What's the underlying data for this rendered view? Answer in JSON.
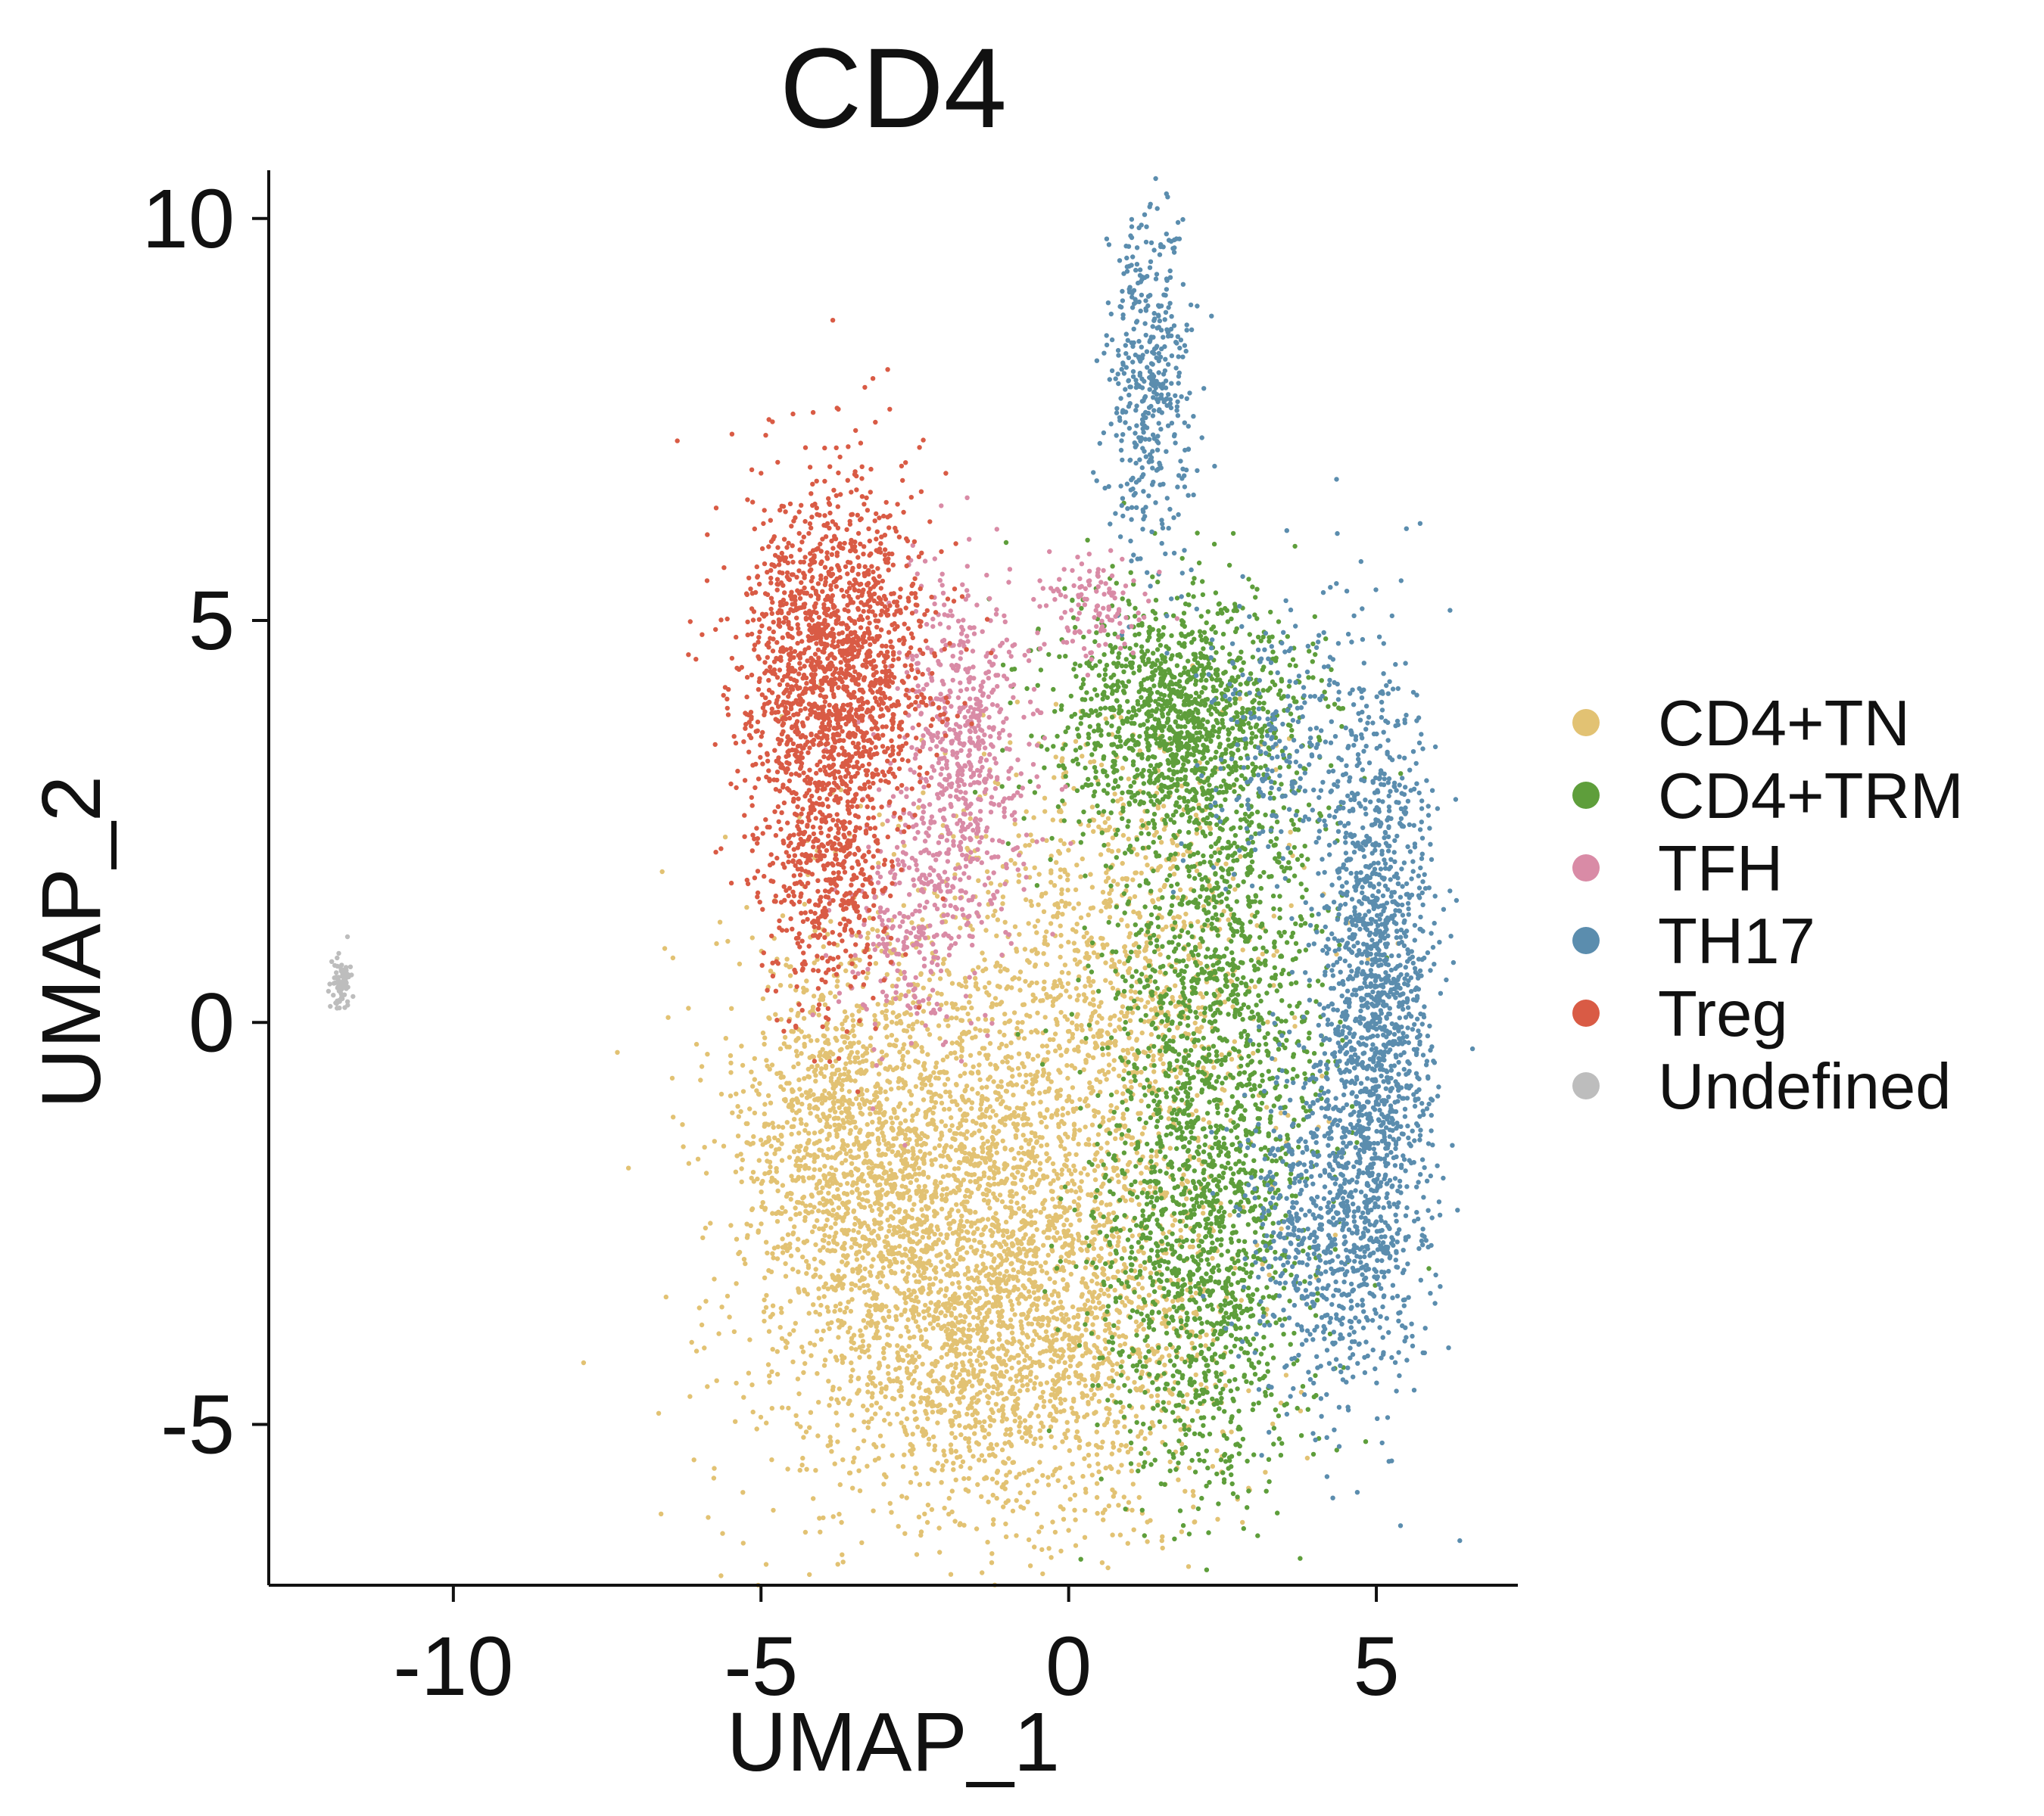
{
  "chart_data": {
    "type": "scatter",
    "title": "CD4",
    "xlabel": "UMAP_1",
    "ylabel": "UMAP_2",
    "xlim": [
      -13,
      7.3
    ],
    "ylim": [
      -7.0,
      10.6
    ],
    "xticks": [
      {
        "value": -10,
        "label": "-10"
      },
      {
        "value": -5,
        "label": "-5"
      },
      {
        "value": 0,
        "label": "0"
      },
      {
        "value": 5,
        "label": "5"
      }
    ],
    "yticks": [
      {
        "value": 10,
        "label": "10"
      },
      {
        "value": 5,
        "label": "5"
      },
      {
        "value": 0,
        "label": "0"
      },
      {
        "value": -5,
        "label": "-5"
      }
    ],
    "grid": false,
    "legend_position": "right",
    "series": [
      {
        "name": "CD4+TN",
        "color": "#E2C273",
        "clusters": [
          {
            "cx": -2.0,
            "cy": -2.4,
            "sx": 1.7,
            "sy": 1.9,
            "n": 2600
          },
          {
            "cx": -0.5,
            "cy": -3.8,
            "sx": 1.6,
            "sy": 1.2,
            "n": 1500
          },
          {
            "cx": 0.8,
            "cy": 0.6,
            "sx": 1.2,
            "sy": 1.5,
            "n": 1000
          },
          {
            "cx": -3.7,
            "cy": -1.5,
            "sx": 0.8,
            "sy": 1.1,
            "n": 700
          }
        ]
      },
      {
        "name": "CD4+TRM",
        "color": "#5E9E3B",
        "clusters": [
          {
            "cx": 1.8,
            "cy": 3.8,
            "sx": 1.0,
            "sy": 0.8,
            "n": 1300
          },
          {
            "cx": 2.4,
            "cy": 0.5,
            "sx": 0.9,
            "sy": 1.6,
            "n": 1100
          },
          {
            "cx": 2.2,
            "cy": -3.0,
            "sx": 0.9,
            "sy": 1.5,
            "n": 1200
          }
        ]
      },
      {
        "name": "TFH",
        "color": "#D98BA6",
        "clusters": [
          {
            "cx": -1.7,
            "cy": 3.4,
            "sx": 0.55,
            "sy": 1.1,
            "n": 650
          },
          {
            "cx": -2.5,
            "cy": 1.2,
            "sx": 0.6,
            "sy": 0.8,
            "n": 250
          },
          {
            "cx": 0.4,
            "cy": 5.2,
            "sx": 0.5,
            "sy": 0.35,
            "n": 120
          }
        ]
      },
      {
        "name": "TH17",
        "color": "#5B8DAE",
        "clusters": [
          {
            "cx": 5.0,
            "cy": 0.5,
            "sx": 0.45,
            "sy": 1.8,
            "n": 1400
          },
          {
            "cx": 4.3,
            "cy": -2.5,
            "sx": 0.7,
            "sy": 1.1,
            "n": 800
          },
          {
            "cx": 1.3,
            "cy": 8.0,
            "sx": 0.35,
            "sy": 1.1,
            "n": 450
          },
          {
            "cx": 3.5,
            "cy": 3.5,
            "sx": 0.7,
            "sy": 0.9,
            "n": 250
          }
        ]
      },
      {
        "name": "Treg",
        "color": "#D95B45",
        "clusters": [
          {
            "cx": -3.8,
            "cy": 4.5,
            "sx": 0.75,
            "sy": 1.1,
            "n": 1700
          },
          {
            "cx": -4.0,
            "cy": 2.0,
            "sx": 0.55,
            "sy": 0.9,
            "n": 500
          }
        ]
      },
      {
        "name": "Undefined",
        "color": "#BDBDBD",
        "clusters": [
          {
            "cx": -11.8,
            "cy": 0.45,
            "sx": 0.08,
            "sy": 0.18,
            "n": 80
          }
        ]
      }
    ]
  }
}
